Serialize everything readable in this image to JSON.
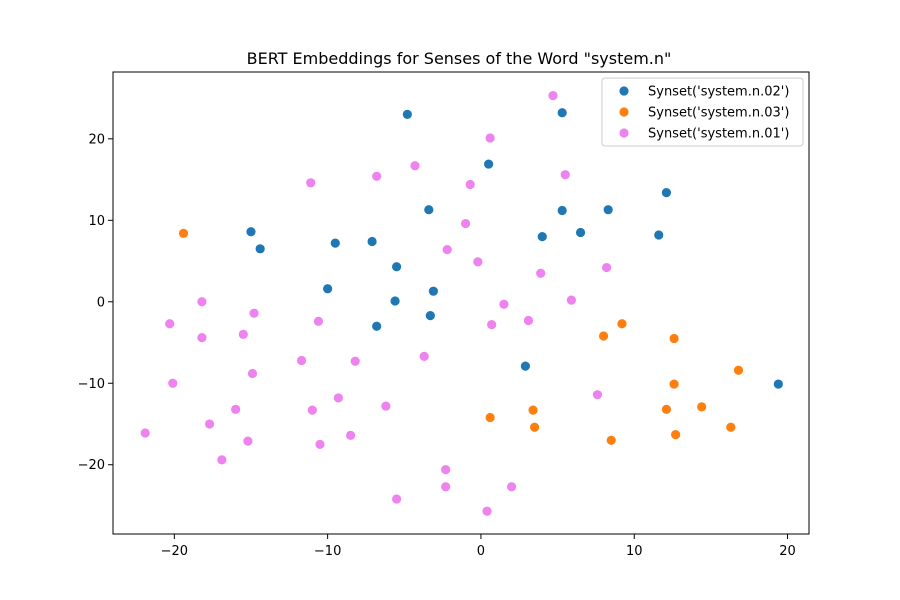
{
  "chart_data": {
    "type": "scatter",
    "title": "BERT Embeddings for Senses of the Word \"system.n\"",
    "xlabel": "",
    "ylabel": "",
    "xlim": [
      -24,
      21.4
    ],
    "ylim": [
      -28.5,
      28.2
    ],
    "xticks": [
      -20,
      -10,
      0,
      10,
      20
    ],
    "xtick_labels": [
      "−20",
      "−10",
      "0",
      "10",
      "20"
    ],
    "yticks": [
      -20,
      -10,
      0,
      10,
      20
    ],
    "ytick_labels": [
      "−20",
      "−10",
      "0",
      "10",
      "20"
    ],
    "grid": false,
    "legend_position": "top-right",
    "series": [
      {
        "name": "Synset('system.n.02')",
        "color": "#1f77b4",
        "points": [
          [
            -4.8,
            23.0
          ],
          [
            5.3,
            23.2
          ],
          [
            0.5,
            16.9
          ],
          [
            12.1,
            13.4
          ],
          [
            -3.4,
            11.3
          ],
          [
            5.3,
            11.2
          ],
          [
            8.3,
            11.3
          ],
          [
            -15.0,
            8.6
          ],
          [
            -14.4,
            6.5
          ],
          [
            -9.5,
            7.2
          ],
          [
            -7.1,
            7.4
          ],
          [
            4.0,
            8.0
          ],
          [
            6.5,
            8.5
          ],
          [
            11.6,
            8.2
          ],
          [
            -5.5,
            4.3
          ],
          [
            -10.0,
            1.6
          ],
          [
            -5.6,
            0.1
          ],
          [
            -3.1,
            1.3
          ],
          [
            -6.8,
            -3.0
          ],
          [
            -3.3,
            -1.7
          ],
          [
            2.9,
            -7.9
          ],
          [
            19.4,
            -10.1
          ]
        ]
      },
      {
        "name": "Synset('system.n.03')",
        "color": "#ff7f0e",
        "points": [
          [
            -19.4,
            8.4
          ],
          [
            9.2,
            -2.7
          ],
          [
            8.0,
            -4.2
          ],
          [
            12.6,
            -4.5
          ],
          [
            16.8,
            -8.4
          ],
          [
            12.6,
            -10.1
          ],
          [
            0.6,
            -14.2
          ],
          [
            3.4,
            -13.3
          ],
          [
            3.5,
            -15.4
          ],
          [
            12.1,
            -13.2
          ],
          [
            14.4,
            -12.9
          ],
          [
            12.7,
            -16.3
          ],
          [
            8.5,
            -17.0
          ],
          [
            16.3,
            -15.4
          ]
        ]
      },
      {
        "name": "Synset('system.n.01')",
        "color": "#ee82ee",
        "points": [
          [
            4.7,
            25.3
          ],
          [
            0.6,
            20.1
          ],
          [
            -4.3,
            16.7
          ],
          [
            -11.1,
            14.6
          ],
          [
            -6.8,
            15.4
          ],
          [
            -0.7,
            14.4
          ],
          [
            5.5,
            15.6
          ],
          [
            -1.0,
            9.6
          ],
          [
            -2.2,
            6.4
          ],
          [
            -0.2,
            4.9
          ],
          [
            3.9,
            3.5
          ],
          [
            8.2,
            4.2
          ],
          [
            -18.2,
            0.0
          ],
          [
            1.5,
            -0.3
          ],
          [
            5.9,
            0.2
          ],
          [
            -20.3,
            -2.7
          ],
          [
            -14.8,
            -1.4
          ],
          [
            -10.6,
            -2.4
          ],
          [
            0.7,
            -2.8
          ],
          [
            3.1,
            -2.3
          ],
          [
            -15.5,
            -4.0
          ],
          [
            -18.2,
            -4.4
          ],
          [
            -3.7,
            -6.7
          ],
          [
            -11.7,
            -7.2
          ],
          [
            -8.2,
            -7.3
          ],
          [
            -20.1,
            -10.0
          ],
          [
            -14.9,
            -8.8
          ],
          [
            7.6,
            -11.4
          ],
          [
            -9.3,
            -11.8
          ],
          [
            -6.2,
            -12.8
          ],
          [
            -16.0,
            -13.2
          ],
          [
            -11.0,
            -13.3
          ],
          [
            -17.7,
            -15.0
          ],
          [
            -21.9,
            -16.1
          ],
          [
            -15.2,
            -17.1
          ],
          [
            -10.5,
            -17.5
          ],
          [
            -8.5,
            -16.4
          ],
          [
            -16.9,
            -19.4
          ],
          [
            -2.3,
            -20.6
          ],
          [
            -2.3,
            -22.7
          ],
          [
            2.0,
            -22.7
          ],
          [
            -5.5,
            -24.2
          ],
          [
            0.4,
            -25.7
          ]
        ]
      }
    ]
  }
}
